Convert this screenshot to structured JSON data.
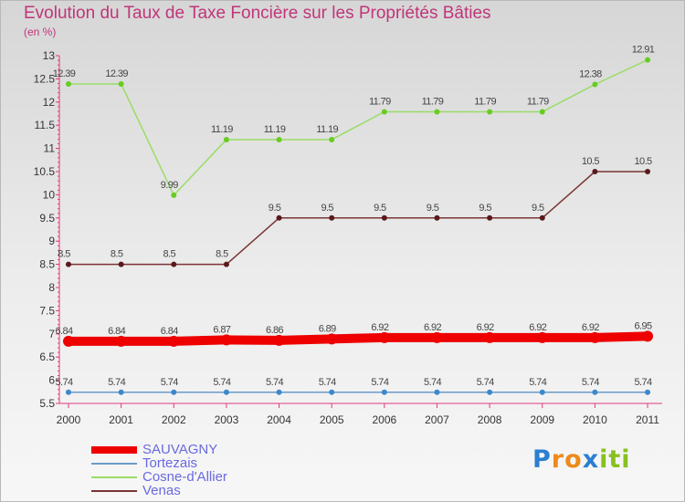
{
  "chart_data": {
    "type": "line",
    "title": "Evolution du Taux de Taxe Foncière sur les Propriétés Bâties",
    "ylabel": "(en %)",
    "xlabel": "",
    "x": [
      "2000",
      "2001",
      "2002",
      "2003",
      "2004",
      "2005",
      "2006",
      "2007",
      "2008",
      "2009",
      "2010",
      "2011"
    ],
    "ylim": [
      5.5,
      13
    ],
    "yticks": [
      "5.5",
      "6",
      "6.5",
      "7",
      "7.5",
      "8",
      "8.5",
      "9",
      "9.5",
      "10",
      "10.5",
      "11",
      "11.5",
      "12",
      "12.5",
      "13"
    ],
    "grid": false,
    "legend_position": "bottom-left",
    "series": [
      {
        "name": "SAUVAGNY",
        "color": "#ee0000",
        "values": [
          6.84,
          6.84,
          6.84,
          6.87,
          6.86,
          6.89,
          6.92,
          6.92,
          6.92,
          6.92,
          6.92,
          6.95
        ],
        "labels": [
          "6.84",
          "6.84",
          "6.84",
          "6.87",
          "6.86",
          "6.89",
          "6.92",
          "6.92",
          "6.92",
          "6.92",
          "6.92",
          "6.95"
        ]
      },
      {
        "name": "Tortezais",
        "color": "#6a9ac8",
        "marker_color": "#3b88cc",
        "values": [
          5.74,
          5.74,
          5.74,
          5.74,
          5.74,
          5.74,
          5.74,
          5.74,
          5.74,
          5.74,
          5.74,
          5.74
        ],
        "labels": [
          "5.74",
          "5.74",
          "5.74",
          "5.74",
          "5.74",
          "5.74",
          "5.74",
          "5.74",
          "5.74",
          "5.74",
          "5.74",
          "5.74"
        ]
      },
      {
        "name": "Cosne-d'Allier",
        "color": "#99dd66",
        "marker_color": "#66cc22",
        "values": [
          12.39,
          12.39,
          9.99,
          11.19,
          11.19,
          11.19,
          11.79,
          11.79,
          11.79,
          11.79,
          12.38,
          12.91
        ],
        "labels": [
          "12.39",
          "12.39",
          "9.99",
          "11.19",
          "11.19",
          "11.19",
          "11.79",
          "11.79",
          "11.79",
          "11.79",
          "12.38",
          "12.91"
        ]
      },
      {
        "name": "Venas",
        "color": "#7a3535",
        "marker_color": "#5a1a1a",
        "values": [
          8.5,
          8.5,
          8.5,
          8.5,
          9.5,
          9.5,
          9.5,
          9.5,
          9.5,
          9.5,
          10.5,
          10.5
        ],
        "labels": [
          "8.5",
          "8.5",
          "8.5",
          "8.5",
          "9.5",
          "9.5",
          "9.5",
          "9.5",
          "9.5",
          "9.5",
          "10.5",
          "10.5"
        ]
      }
    ]
  },
  "logo": {
    "text": "Proxiti",
    "letters": [
      {
        "ch": "P",
        "color": "#2a7fd0"
      },
      {
        "ch": "r",
        "color": "#ee8a1a"
      },
      {
        "ch": "o",
        "color": "#ee8a1a"
      },
      {
        "ch": "x",
        "color": "#2a7fd0"
      },
      {
        "ch": "i",
        "color": "#88c020"
      },
      {
        "ch": "t",
        "color": "#88c020"
      },
      {
        "ch": "i",
        "color": "#88c020"
      }
    ]
  }
}
